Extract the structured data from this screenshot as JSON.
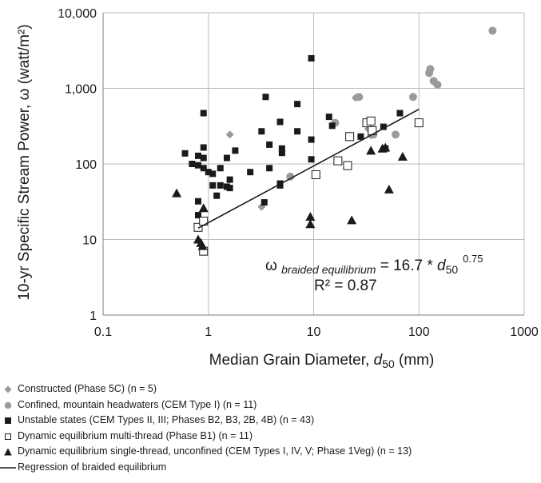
{
  "chart_data": {
    "type": "scatter",
    "xscale": "log",
    "yscale": "log",
    "xlim": [
      0.1,
      1000
    ],
    "ylim": [
      1,
      10000
    ],
    "grid": true,
    "xlabel_main": "Median Grain Diameter, ",
    "xlabel_var": "d",
    "xlabel_sub": "50",
    "xlabel_unit": " (mm)",
    "ylabel": "10-yr Specific Stream Power, ω (watt/m²)",
    "xticks": [
      0.1,
      1,
      10,
      100,
      1000
    ],
    "xtick_labels": [
      "0.1",
      "1",
      "10",
      "100",
      "1000"
    ],
    "yticks": [
      1,
      10,
      100,
      1000,
      10000
    ],
    "ytick_labels": [
      "1",
      "10",
      "100",
      "1,000",
      "10,000"
    ],
    "equation": {
      "omega": "ω",
      "subscript": "braided equilibrium",
      "rhs": " = 16.7 * ",
      "var": "d",
      "var_sub": "50",
      "exponent": "0.75",
      "r2": "R² = 0.87"
    },
    "regression": {
      "coef": 16.7,
      "exp": 0.75,
      "x_range": [
        0.8,
        100
      ]
    },
    "series": [
      {
        "name": "Constructed (Phase 5C) (n = 5)",
        "marker": "diamond",
        "color": "#999999",
        "points": [
          [
            1.6,
            245
          ],
          [
            3.2,
            27
          ],
          [
            25,
            750
          ],
          [
            33,
            290
          ],
          [
            35,
            240
          ]
        ]
      },
      {
        "name": "Confined, mountain headwaters (CEM Type I) (n = 11)",
        "marker": "circle",
        "color": "#9a9a9a",
        "points": [
          [
            16,
            350
          ],
          [
            27,
            770
          ],
          [
            60,
            245
          ],
          [
            88,
            770
          ],
          [
            125,
            1600
          ],
          [
            128,
            1800
          ],
          [
            138,
            1250
          ],
          [
            150,
            1120
          ],
          [
            500,
            5800
          ],
          [
            6,
            68
          ],
          [
            37,
            245
          ]
        ]
      },
      {
        "name": "Unstable states (CEM Types II, III; Phases B2, B3, 2B, 4B) (n = 43)",
        "marker": "square",
        "color": "#1a1a1a",
        "points": [
          [
            0.6,
            138
          ],
          [
            0.7,
            100
          ],
          [
            0.8,
            96
          ],
          [
            0.8,
            128
          ],
          [
            0.8,
            32
          ],
          [
            0.8,
            21
          ],
          [
            0.9,
            470
          ],
          [
            0.9,
            165
          ],
          [
            0.9,
            120
          ],
          [
            0.9,
            88
          ],
          [
            1.0,
            78
          ],
          [
            1.1,
            74
          ],
          [
            1.1,
            52
          ],
          [
            1.2,
            38
          ],
          [
            1.3,
            88
          ],
          [
            1.3,
            52
          ],
          [
            1.5,
            120
          ],
          [
            1.5,
            50
          ],
          [
            1.6,
            48
          ],
          [
            1.6,
            62
          ],
          [
            1.8,
            150
          ],
          [
            2.5,
            78
          ],
          [
            3.2,
            270
          ],
          [
            3.4,
            31
          ],
          [
            3.5,
            770
          ],
          [
            3.8,
            180
          ],
          [
            3.8,
            88
          ],
          [
            4.8,
            360
          ],
          [
            4.8,
            55
          ],
          [
            5.0,
            160
          ],
          [
            5.0,
            140
          ],
          [
            7.0,
            620
          ],
          [
            7.0,
            270
          ],
          [
            9.5,
            2500
          ],
          [
            9.5,
            210
          ],
          [
            9.5,
            115
          ],
          [
            14,
            420
          ],
          [
            15,
            320
          ],
          [
            28,
            230
          ],
          [
            46,
            310
          ],
          [
            48,
            160
          ],
          [
            66,
            470
          ],
          [
            4.8,
            52
          ]
        ]
      },
      {
        "name": "Dynamic equilibrium multi-thread (Phase B1) (n = 11)",
        "marker": "open-square",
        "color": "#1a1a1a",
        "points": [
          [
            0.8,
            14.5
          ],
          [
            0.9,
            17.5
          ],
          [
            0.9,
            7
          ],
          [
            10.5,
            72
          ],
          [
            17,
            110
          ],
          [
            21,
            95
          ],
          [
            22,
            230
          ],
          [
            32,
            350
          ],
          [
            35,
            370
          ],
          [
            36,
            275
          ],
          [
            100,
            350
          ]
        ]
      },
      {
        "name": "Dynamic equilibrium single-thread, unconfined (CEM Types I, IV, V; Phase 1Veg) (n = 13)",
        "marker": "triangle",
        "color": "#1a1a1a",
        "points": [
          [
            0.5,
            41
          ],
          [
            0.8,
            10
          ],
          [
            0.85,
            9
          ],
          [
            0.9,
            26
          ],
          [
            9.3,
            20
          ],
          [
            9.3,
            16
          ],
          [
            23,
            18
          ],
          [
            35,
            150
          ],
          [
            45,
            160
          ],
          [
            48,
            165
          ],
          [
            52,
            46
          ],
          [
            70,
            125
          ],
          [
            0.88,
            8.2
          ]
        ]
      }
    ],
    "regression_label": "Regression of braided equilibrium"
  }
}
